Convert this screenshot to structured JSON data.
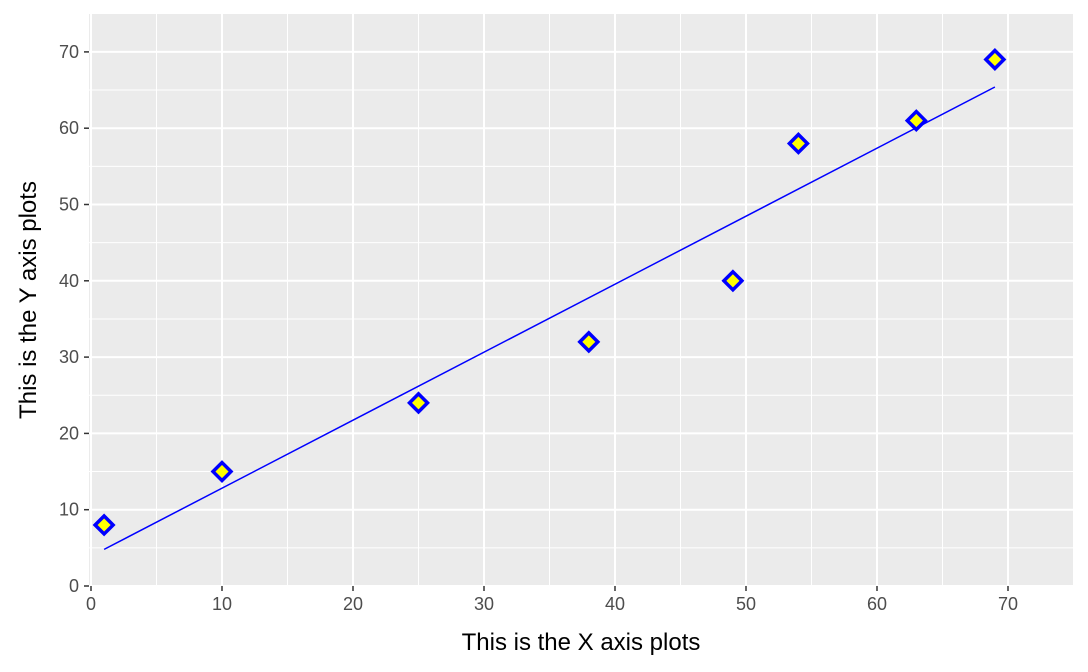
{
  "chart_data": {
    "type": "scatter",
    "title": "",
    "xlabel": "This is the X axis plots",
    "ylabel": "This is the Y axis plots",
    "xlim": [
      0,
      75
    ],
    "ylim": [
      0,
      75
    ],
    "xticks": [
      "0",
      "10",
      "20",
      "30",
      "40",
      "50",
      "60",
      "70"
    ],
    "yticks": [
      "0",
      "10",
      "20",
      "30",
      "40",
      "50",
      "60",
      "70"
    ],
    "grid": true,
    "legend": "none",
    "series": [
      {
        "points": [
          {
            "x": 1,
            "y": 8
          },
          {
            "x": 10,
            "y": 15
          },
          {
            "x": 25,
            "y": 24
          },
          {
            "x": 38,
            "y": 32
          },
          {
            "x": 49,
            "y": 40
          },
          {
            "x": 54,
            "y": 58
          },
          {
            "x": 63,
            "y": 61
          },
          {
            "x": 69,
            "y": 69
          }
        ],
        "marker": "diamond",
        "marker_fill": "#ffff00",
        "marker_edge": "#0000ff"
      }
    ],
    "fit_line": {
      "type": "linear",
      "from": {
        "x": 1,
        "y": 4.8
      },
      "to": {
        "x": 69,
        "y": 65.4
      },
      "color": "#0000ff"
    },
    "panel_background": "#ebebeb",
    "grid_color": "#ffffff"
  }
}
